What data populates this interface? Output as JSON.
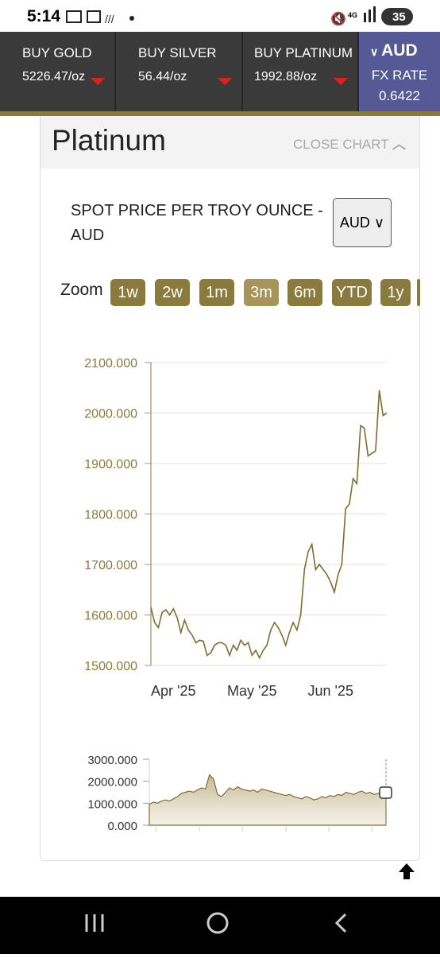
{
  "status_bar": {
    "time": "5:14",
    "network": "4G",
    "battery": "35"
  },
  "tickers": [
    {
      "label": "BUY GOLD",
      "price": "5226.47/oz"
    },
    {
      "label": "BUY SILVER",
      "price": "56.44/oz"
    },
    {
      "label": "BUY PLATINUM",
      "price": "1992.88/oz"
    }
  ],
  "fx": {
    "currency": "AUD",
    "label": "FX RATE",
    "rate": "0.6422"
  },
  "card": {
    "title": "Platinum",
    "close": "CLOSE CHART",
    "subtitle": "SPOT PRICE PER TROY OUNCE - AUD",
    "currency_select": "AUD",
    "zoom_label": "Zoom",
    "zoom_buttons": [
      "1w",
      "2w",
      "1m",
      "3m",
      "6m",
      "YTD",
      "1y"
    ]
  },
  "chart_data": [
    {
      "type": "line",
      "color": "#7d6d2f",
      "categories": [
        null,
        null,
        null,
        null,
        null,
        null,
        "Apr '25",
        null,
        null,
        null,
        null,
        null,
        null,
        null,
        null,
        null,
        null,
        null,
        null,
        null,
        null,
        null,
        null,
        null,
        null,
        null,
        null,
        "May '25",
        null,
        null,
        null,
        null,
        null,
        null,
        null,
        null,
        null,
        null,
        null,
        null,
        null,
        null,
        null,
        null,
        null,
        null,
        null,
        null,
        "Jun '25",
        null,
        null,
        null,
        null,
        null,
        null,
        null,
        null,
        null,
        null,
        null,
        null,
        null,
        null,
        null
      ],
      "values": [
        1615,
        1585,
        1575,
        1605,
        1610,
        1600,
        1612,
        1595,
        1565,
        1590,
        1570,
        1560,
        1545,
        1550,
        1548,
        1520,
        1525,
        1540,
        1545,
        1545,
        1540,
        1520,
        1540,
        1530,
        1550,
        1540,
        1545,
        1520,
        1530,
        1515,
        1530,
        1540,
        1570,
        1585,
        1575,
        1560,
        1540,
        1565,
        1585,
        1570,
        1600,
        1690,
        1725,
        1740,
        1690,
        1700,
        1690,
        1680,
        1665,
        1645,
        1680,
        1700,
        1810,
        1820,
        1870,
        1860,
        1975,
        1970,
        1915,
        1920,
        1925,
        2045,
        1995,
        2000
      ],
      "ylim": [
        1500,
        2100
      ],
      "yticks": [
        {
          "value": 1500,
          "label": "1500.000"
        },
        {
          "value": 1600,
          "label": "1600.000"
        },
        {
          "value": 1700,
          "label": "1700.000"
        },
        {
          "value": 1800,
          "label": "1800.000"
        },
        {
          "value": 1900,
          "label": "1900.000"
        },
        {
          "value": 2000,
          "label": "2000.000"
        },
        {
          "value": 2100,
          "label": "2100.000"
        }
      ],
      "grid": true
    },
    {
      "type": "area",
      "color": "#7d6d2f",
      "values": [
        950,
        1050,
        1000,
        1100,
        1150,
        1100,
        1200,
        1300,
        1450,
        1500,
        1550,
        1500,
        1600,
        1700,
        1650,
        2300,
        2100,
        1400,
        1300,
        1500,
        1700,
        1600,
        1750,
        1650,
        1600,
        1550,
        1600,
        1500,
        1650,
        1600,
        1550,
        1500,
        1450,
        1400,
        1350,
        1400,
        1300,
        1250,
        1200,
        1300,
        1250,
        1150,
        1200,
        1300,
        1250,
        1350,
        1300,
        1400,
        1350,
        1500,
        1450,
        1400,
        1500,
        1550,
        1450,
        1500,
        1400,
        1450,
        1500,
        1550
      ],
      "ylim": [
        0,
        3000
      ],
      "yticks": [
        {
          "value": 0,
          "label": "0.000"
        },
        {
          "value": 1000,
          "label": "1000.000"
        },
        {
          "value": 2000,
          "label": "2000.000"
        },
        {
          "value": 3000,
          "label": "3000.000"
        }
      ],
      "grid": false
    }
  ]
}
